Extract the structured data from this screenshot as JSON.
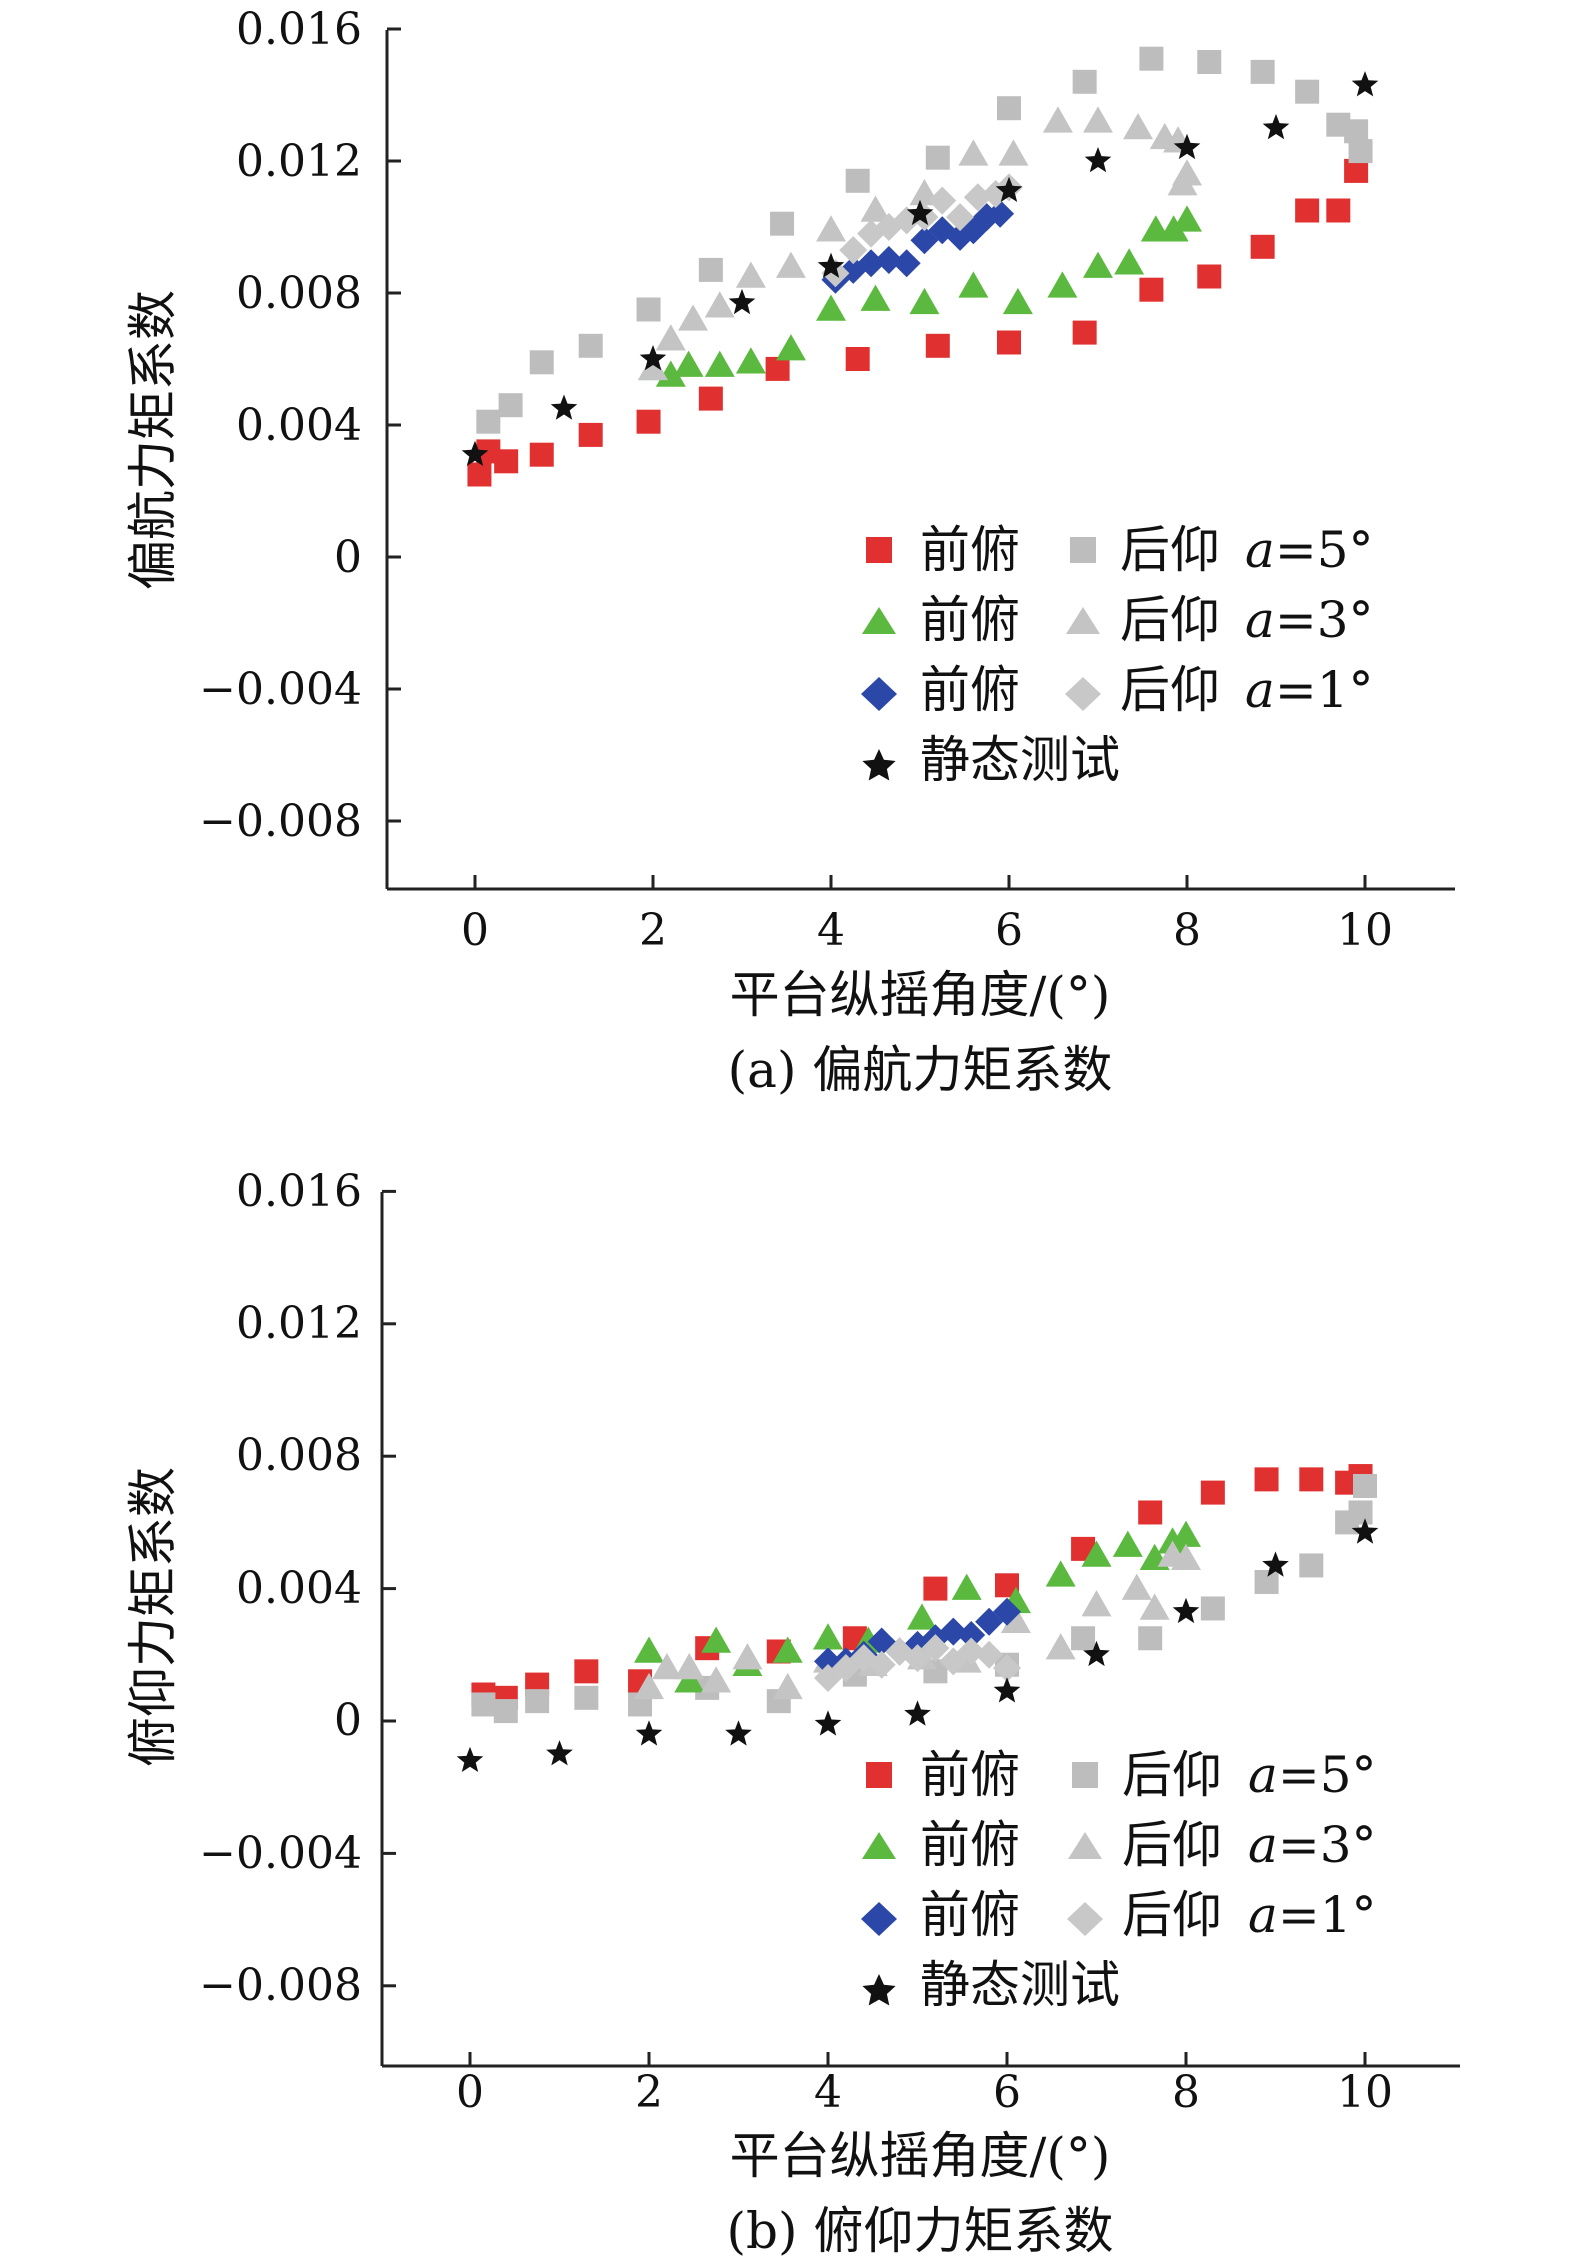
{
  "colors": {
    "fwd5": "#e03030",
    "back5": "#bdbdbd",
    "fwd3": "#5ab93e",
    "back3": "#c4c4c4",
    "fwd1": "#2b47a8",
    "back1": "#c8c8c8",
    "static": "#111111",
    "axis": "#222222"
  },
  "legend": {
    "fwd": "前俯",
    "back": "后仰",
    "a_label": "a",
    "a5": "=5°",
    "a3": "=3°",
    "a1": "=1°",
    "static": "静态测试"
  },
  "chart_data": [
    {
      "type": "scatter",
      "caption": "(a) 偏航力矩系数",
      "xlabel": "平台纵摇角度/(°)",
      "ylabel": "偏航力矩系数",
      "xlim": [
        -1,
        11
      ],
      "ylim": [
        -0.01,
        0.016
      ],
      "xticks": [
        0,
        2,
        4,
        6,
        8,
        10
      ],
      "xtick_labels": [
        "0",
        "2",
        "4",
        "6",
        "8",
        "10"
      ],
      "yticks": [
        -0.008,
        -0.004,
        0,
        0.004,
        0.008,
        0.012,
        0.016
      ],
      "ytick_labels": [
        "−0.008",
        "−0.004",
        "0",
        "0.004",
        "0.008",
        "0.012",
        "0.016"
      ],
      "series": [
        {
          "key": "fwd5",
          "marker": "square",
          "color": "#e03030",
          "x": [
            0.05,
            0.15,
            0.35,
            0.75,
            1.3,
            1.95,
            2.65,
            3.4,
            4.3,
            5.2,
            6.0,
            6.85,
            7.6,
            8.25,
            8.85,
            9.35,
            9.7,
            9.9
          ],
          "y": [
            0.0025,
            0.0032,
            0.0029,
            0.0031,
            0.0037,
            0.0041,
            0.0048,
            0.0057,
            0.006,
            0.0064,
            0.0065,
            0.0068,
            0.0081,
            0.0085,
            0.0094,
            0.0105,
            0.0105,
            0.0117
          ]
        },
        {
          "key": "back5",
          "marker": "square",
          "color": "#bdbdbd",
          "x": [
            0.15,
            0.4,
            0.75,
            1.3,
            1.95,
            2.65,
            3.45,
            4.3,
            5.2,
            6.0,
            6.85,
            7.6,
            8.25,
            8.85,
            9.35,
            9.7,
            9.9,
            9.95
          ],
          "y": [
            0.0041,
            0.0046,
            0.0059,
            0.0064,
            0.0075,
            0.0087,
            0.0101,
            0.0114,
            0.0121,
            0.0136,
            0.0144,
            0.0151,
            0.015,
            0.0147,
            0.0141,
            0.0131,
            0.0129,
            0.0123
          ]
        },
        {
          "key": "fwd3",
          "marker": "triangle",
          "color": "#5ab93e",
          "x": [
            2.0,
            2.2,
            2.4,
            2.75,
            3.1,
            3.55,
            4.0,
            4.5,
            5.05,
            5.6,
            6.1,
            6.6,
            7.0,
            7.35,
            7.65,
            7.85,
            8.0
          ],
          "y": [
            0.0057,
            0.0055,
            0.0058,
            0.0058,
            0.0059,
            0.0063,
            0.0075,
            0.0078,
            0.0077,
            0.0082,
            0.0077,
            0.0082,
            0.0088,
            0.0089,
            0.0099,
            0.0099,
            0.0102
          ]
        },
        {
          "key": "back3",
          "marker": "triangle",
          "color": "#c4c4c4",
          "x": [
            2.0,
            2.2,
            2.45,
            2.75,
            3.1,
            3.55,
            4.0,
            4.5,
            5.05,
            5.6,
            6.05,
            6.55,
            7.0,
            7.45,
            7.75,
            7.9,
            8.0,
            7.95
          ],
          "y": [
            0.0057,
            0.0066,
            0.0072,
            0.0076,
            0.0085,
            0.0088,
            0.0099,
            0.0105,
            0.011,
            0.0122,
            0.0122,
            0.0132,
            0.0132,
            0.013,
            0.0127,
            0.0126,
            0.0116,
            0.0113
          ]
        },
        {
          "key": "fwd1",
          "marker": "diamond",
          "color": "#2b47a8",
          "x": [
            4.05,
            4.25,
            4.45,
            4.65,
            4.85,
            5.05,
            5.25,
            5.45,
            5.6,
            5.75,
            5.9
          ],
          "y": [
            0.0084,
            0.0087,
            0.0089,
            0.009,
            0.0089,
            0.0096,
            0.0099,
            0.0097,
            0.0099,
            0.0103,
            0.0104
          ]
        },
        {
          "key": "back1",
          "marker": "diamond",
          "color": "#c8c8c8",
          "x": [
            4.05,
            4.25,
            4.45,
            4.65,
            4.85,
            5.05,
            5.25,
            5.45,
            5.65,
            5.85,
            6.0
          ],
          "y": [
            0.0086,
            0.0093,
            0.0098,
            0.01,
            0.0102,
            0.0103,
            0.0108,
            0.0103,
            0.0109,
            0.011,
            0.0112
          ]
        },
        {
          "key": "static",
          "marker": "star",
          "color": "#111111",
          "x": [
            0,
            1,
            2,
            3,
            4,
            5,
            6,
            7,
            8,
            9,
            10
          ],
          "y": [
            0.0031,
            0.0045,
            0.006,
            0.0077,
            0.0088,
            0.0104,
            0.0111,
            0.012,
            0.0124,
            0.013,
            0.0143
          ]
        }
      ]
    },
    {
      "type": "scatter",
      "caption": "(b) 俯仰力矩系数",
      "xlabel": "平台纵摇角度/(°)",
      "ylabel": "俯仰力矩系数",
      "xlim": [
        -1,
        11
      ],
      "ylim": [
        -0.01,
        0.016
      ],
      "xticks": [
        0,
        2,
        4,
        6,
        8,
        10
      ],
      "xtick_labels": [
        "0",
        "2",
        "4",
        "6",
        "8",
        "10"
      ],
      "yticks": [
        -0.008,
        -0.004,
        0,
        0.004,
        0.008,
        0.012,
        0.016
      ],
      "ytick_labels": [
        "−0.008",
        "−0.004",
        "0",
        "0.004",
        "0.008",
        "0.012",
        "0.016"
      ],
      "series": [
        {
          "key": "fwd5",
          "marker": "square",
          "color": "#e03030",
          "x": [
            0.15,
            0.4,
            0.75,
            1.3,
            1.9,
            2.65,
            3.45,
            4.3,
            5.2,
            6.0,
            6.85,
            7.6,
            8.3,
            8.9,
            9.4,
            9.8,
            9.95
          ],
          "y": [
            0.0008,
            0.0007,
            0.0011,
            0.0015,
            0.0012,
            0.0022,
            0.0021,
            0.0025,
            0.004,
            0.0041,
            0.0052,
            0.0063,
            0.0069,
            0.0073,
            0.0073,
            0.0072,
            0.0074
          ]
        },
        {
          "key": "back5",
          "marker": "square",
          "color": "#bdbdbd",
          "x": [
            0.15,
            0.4,
            0.75,
            1.3,
            1.9,
            2.65,
            3.45,
            4.3,
            5.2,
            6.0,
            6.85,
            7.6,
            8.3,
            8.9,
            9.4,
            9.8,
            9.95,
            10.0
          ],
          "y": [
            0.0005,
            0.0003,
            0.0006,
            0.0007,
            0.0005,
            0.001,
            0.0006,
            0.0014,
            0.0015,
            0.0017,
            0.0025,
            0.0025,
            0.0034,
            0.0042,
            0.0047,
            0.006,
            0.0063,
            0.0071
          ]
        },
        {
          "key": "fwd3",
          "marker": "triangle",
          "color": "#5ab93e",
          "x": [
            2.0,
            2.45,
            2.75,
            3.1,
            3.55,
            4.0,
            4.45,
            5.05,
            5.55,
            6.1,
            6.6,
            7.0,
            7.35,
            7.65,
            7.85,
            8.0
          ],
          "y": [
            0.0021,
            0.0012,
            0.0024,
            0.0017,
            0.0021,
            0.0025,
            0.0024,
            0.0031,
            0.004,
            0.0036,
            0.0044,
            0.005,
            0.0053,
            0.0049,
            0.0054,
            0.0056
          ]
        },
        {
          "key": "back3",
          "marker": "triangle",
          "color": "#c4c4c4",
          "x": [
            2.0,
            2.2,
            2.45,
            2.75,
            3.1,
            3.55,
            4.0,
            4.5,
            5.05,
            5.55,
            6.1,
            6.6,
            7.0,
            7.45,
            7.65,
            7.85,
            8.0
          ],
          "y": [
            0.001,
            0.0016,
            0.0016,
            0.0012,
            0.0019,
            0.001,
            0.0018,
            0.0017,
            0.0019,
            0.0018,
            0.003,
            0.0022,
            0.0035,
            0.004,
            0.0034,
            0.005,
            0.0049
          ]
        },
        {
          "key": "fwd1",
          "marker": "diamond",
          "color": "#2b47a8",
          "x": [
            4.0,
            4.2,
            4.4,
            4.6,
            4.8,
            5.0,
            5.2,
            5.4,
            5.6,
            5.8,
            6.0
          ],
          "y": [
            0.0018,
            0.0018,
            0.002,
            0.0024,
            0.0021,
            0.0023,
            0.0025,
            0.0027,
            0.0026,
            0.003,
            0.0033
          ]
        },
        {
          "key": "back1",
          "marker": "diamond",
          "color": "#c8c8c8",
          "x": [
            4.0,
            4.2,
            4.4,
            4.6,
            4.8,
            5.0,
            5.2,
            5.4,
            5.6,
            5.8,
            6.0
          ],
          "y": [
            0.0013,
            0.0016,
            0.0019,
            0.0017,
            0.0021,
            0.0019,
            0.0022,
            0.0018,
            0.0021,
            0.002,
            0.0016
          ]
        },
        {
          "key": "static",
          "marker": "star",
          "color": "#111111",
          "x": [
            0,
            1,
            2,
            3,
            4,
            5,
            6,
            7,
            8,
            9,
            10
          ],
          "y": [
            -0.0012,
            -0.001,
            -0.0004,
            -0.0004,
            -0.0001,
            0.0002,
            0.0009,
            0.002,
            0.0033,
            0.0047,
            0.0057
          ]
        }
      ]
    }
  ]
}
